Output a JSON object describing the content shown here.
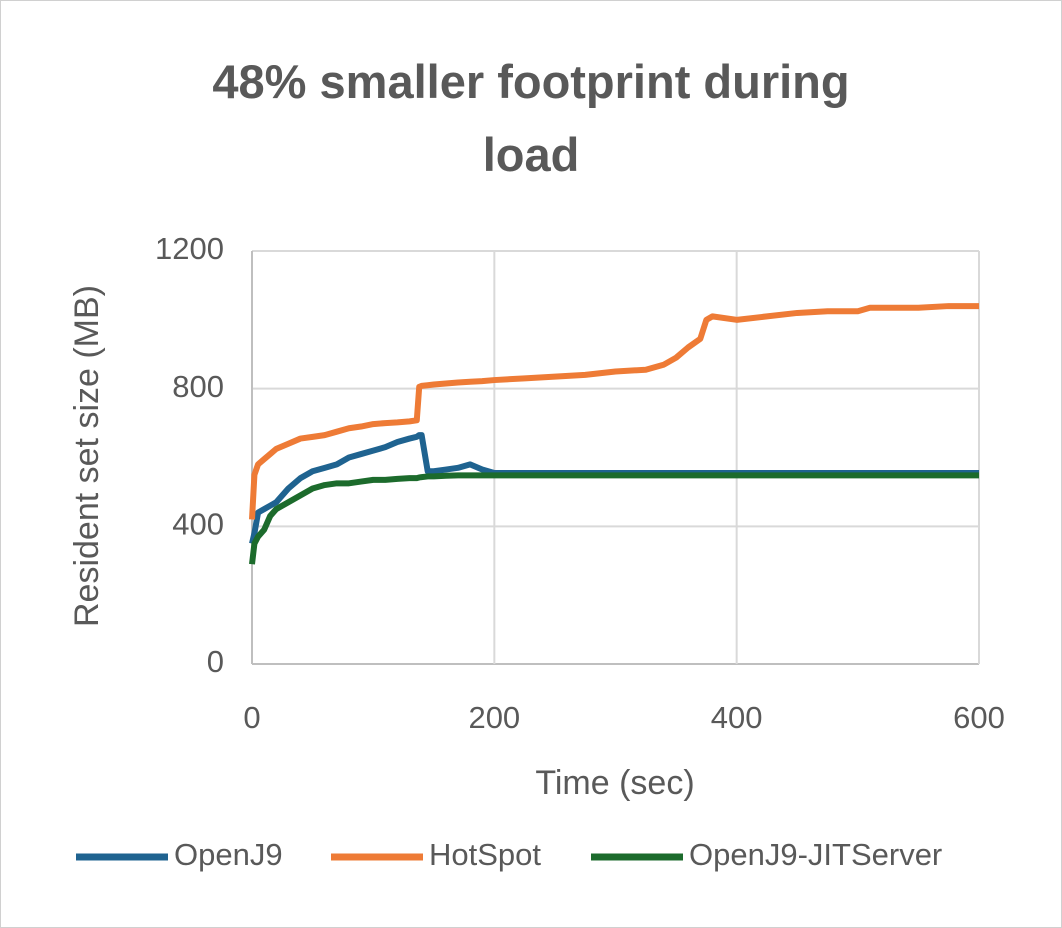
{
  "chart_data": {
    "type": "line",
    "title": "48% smaller footprint during load",
    "x_label": "Time (sec)",
    "y_label": "Resident set size (MB)",
    "x": [
      0,
      2,
      5,
      10,
      15,
      20,
      30,
      40,
      50,
      60,
      70,
      80,
      90,
      100,
      110,
      120,
      130,
      136,
      138,
      140,
      145,
      150,
      160,
      170,
      180,
      190,
      200,
      225,
      250,
      275,
      300,
      325,
      340,
      350,
      360,
      370,
      375,
      380,
      400,
      425,
      450,
      475,
      500,
      510,
      525,
      550,
      575,
      600
    ],
    "series": [
      {
        "name": "OpenJ9",
        "color": "#1f6390",
        "values": [
          350,
          380,
          440,
          450,
          460,
          470,
          510,
          540,
          560,
          570,
          580,
          600,
          610,
          620,
          630,
          645,
          655,
          660,
          665,
          665,
          560,
          560,
          565,
          570,
          580,
          565,
          555,
          555,
          555,
          555,
          555,
          555,
          555,
          555,
          555,
          555,
          555,
          555,
          555,
          555,
          555,
          555,
          555,
          555,
          555,
          555,
          555,
          555
        ]
      },
      {
        "name": "HotSpot",
        "color": "#ee7b36",
        "values": [
          420,
          550,
          580,
          595,
          610,
          625,
          640,
          655,
          660,
          665,
          675,
          685,
          690,
          697,
          700,
          702,
          705,
          708,
          805,
          808,
          810,
          812,
          815,
          818,
          820,
          822,
          825,
          830,
          835,
          840,
          850,
          855,
          870,
          890,
          920,
          945,
          1000,
          1010,
          1000,
          1010,
          1020,
          1025,
          1025,
          1035,
          1035,
          1035,
          1040,
          1040
        ]
      },
      {
        "name": "OpenJ9-JITServer",
        "color": "#1c6b2c",
        "values": [
          290,
          350,
          370,
          390,
          430,
          450,
          470,
          490,
          510,
          520,
          525,
          525,
          530,
          535,
          535,
          538,
          540,
          540,
          542,
          543,
          545,
          545,
          547,
          548,
          548,
          548,
          548,
          548,
          548,
          548,
          548,
          548,
          548,
          548,
          548,
          548,
          548,
          548,
          548,
          548,
          548,
          548,
          548,
          548,
          548,
          548,
          548,
          548
        ]
      }
    ],
    "xlim": [
      0,
      600
    ],
    "xticks": [
      0,
      200,
      400,
      600
    ],
    "ylim": [
      0,
      1200
    ],
    "yticks": [
      0,
      400,
      800,
      1200
    ],
    "grid": true,
    "legend": "bottom"
  }
}
